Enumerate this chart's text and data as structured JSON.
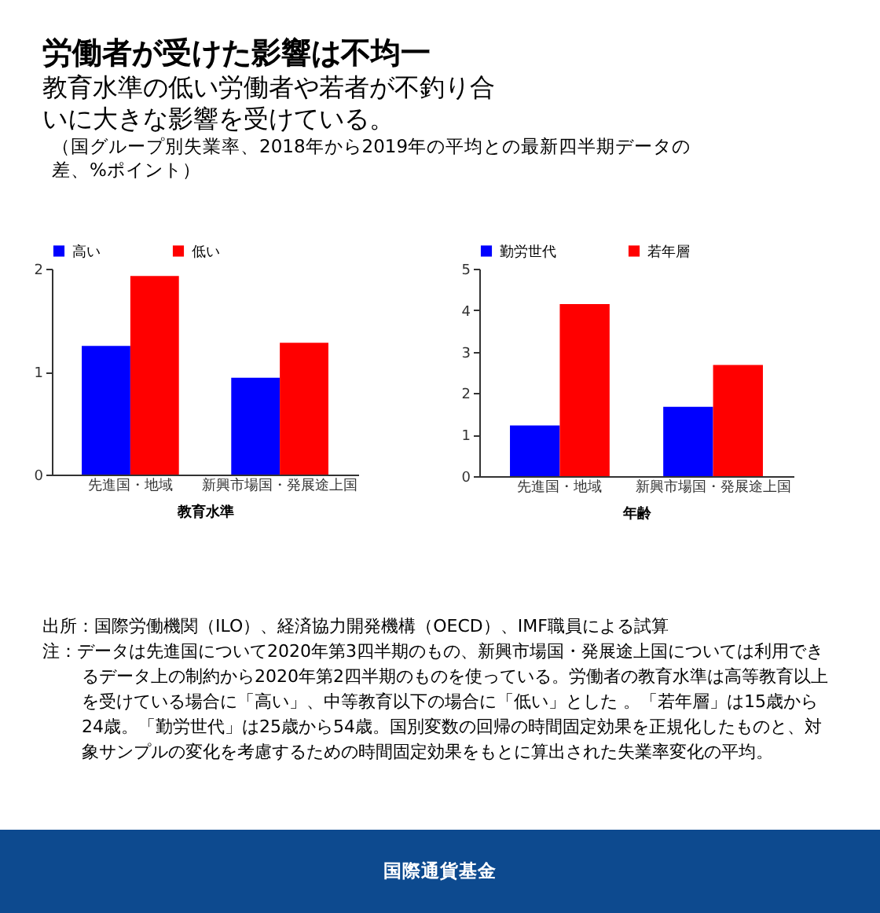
{
  "chart_data": [
    {
      "type": "bar",
      "title": "労働者が受けた影響は不均一",
      "subtitle": "教育水準の低い労働者や若者が不釣り合いに大きな影響を受けている。",
      "annotations": [
        "（国グループ別失業率、2018年から2019年の平均との最新四半期データの差、%ポイント）"
      ],
      "xlabel": "教育水準",
      "categories": [
        "先進国・地域",
        "新興市場国・発展途上国"
      ],
      "series": [
        {
          "name": "高い",
          "color": "#0000ff",
          "values": [
            1.25,
            0.94
          ]
        },
        {
          "name": "低い",
          "color": "#ff0000",
          "values": [
            1.93,
            1.28
          ]
        }
      ],
      "ylim": [
        0,
        2
      ],
      "yticks": [
        0,
        1,
        2
      ],
      "grid": false,
      "legend": "top"
    },
    {
      "type": "bar",
      "xlabel": "年齢",
      "categories": [
        "先進国・地域",
        "新興市場国・発展途上国"
      ],
      "series": [
        {
          "name": "勤労世代",
          "color": "#0000ff",
          "values": [
            1.22,
            1.67
          ]
        },
        {
          "name": "若年層",
          "color": "#ff0000",
          "values": [
            4.15,
            2.68
          ]
        }
      ],
      "ylim": [
        0,
        5
      ],
      "yticks": [
        0,
        1,
        2,
        3,
        4,
        5
      ],
      "grid": false,
      "legend": "top",
      "annotations": [
        "出所：国際労働機関（ILO）、経済協力開発機構（OECD）、IMF職員による試算",
        "注：データは先進国について2020年第3四半期のもの、新興市場国・発展途上国については利用できるデータ上の制約から2020年第2四半期のものを使っている。労働者の教育水準は高等教育以上を受けている場合に「高い」、中等教育以下の場合に「低い」とした 。「若年層」は15歳から24歳。「勤労世代」は25歳から54歳。国別変数の回帰の時間固定効果を正規化したものと、対象サンプルの変化を考慮するための時間固定効果をもとに算出された失業率変化の平均。",
        "国際通貨基金"
      ]
    }
  ]
}
